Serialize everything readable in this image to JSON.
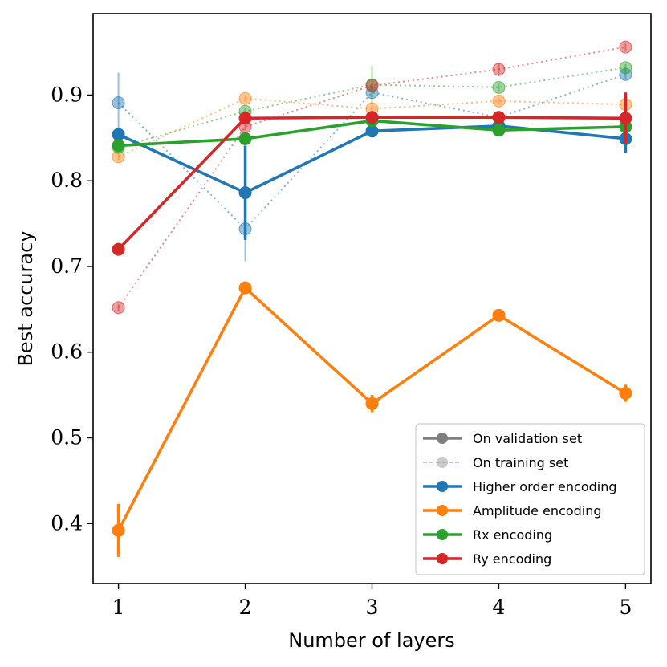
{
  "chart_data": {
    "type": "line",
    "xlabel": "Number of layers",
    "ylabel": "Best accuracy",
    "x": [
      1,
      2,
      3,
      4,
      5
    ],
    "xlim": [
      0.8,
      5.2
    ],
    "ylim": [
      0.33,
      0.995
    ],
    "x_ticks": [
      "1",
      "2",
      "3",
      "4",
      "5"
    ],
    "y_ticks": [
      {
        "value": 0.4,
        "label": "0.4"
      },
      {
        "value": 0.5,
        "label": "0.5"
      },
      {
        "value": 0.6,
        "label": "0.6"
      },
      {
        "value": 0.7,
        "label": "0.7"
      },
      {
        "value": 0.8,
        "label": "0.8"
      },
      {
        "value": 0.9,
        "label": "0.9"
      }
    ],
    "legend_position": "lower-right",
    "legend": [
      {
        "label": "On validation set",
        "color": "#7f7f7f",
        "style": "solid"
      },
      {
        "label": "On training set",
        "color": "#9e9e9e",
        "style": "dashed"
      },
      {
        "label": "Higher order encoding",
        "color": "#1f77b4",
        "style": "solid"
      },
      {
        "label": "Amplitude encoding",
        "color": "#ff7f0e",
        "style": "solid"
      },
      {
        "label": "Rx encoding",
        "color": "#2ca02c",
        "style": "solid"
      },
      {
        "label": "Ry encoding",
        "color": "#d62728",
        "style": "solid"
      }
    ],
    "series": [
      {
        "name": "Higher order encoding",
        "set": "training",
        "color": "#1f77b4",
        "values": [
          0.891,
          0.744,
          0.903,
          0.874,
          0.924
        ],
        "errors": [
          0.035,
          0.038,
          0.006,
          0.004,
          0.006
        ]
      },
      {
        "name": "Amplitude encoding",
        "set": "training",
        "color": "#ff7f0e",
        "values": [
          0.828,
          0.896,
          0.884,
          0.893,
          0.889
        ],
        "errors": [
          0.004,
          0.004,
          0.004,
          0.004,
          0.004
        ]
      },
      {
        "name": "Rx encoding",
        "set": "training",
        "color": "#2ca02c",
        "values": [
          0.839,
          0.881,
          0.912,
          0.909,
          0.932
        ],
        "errors": [
          0.004,
          0.004,
          0.022,
          0.004,
          0.004
        ]
      },
      {
        "name": "Ry encoding",
        "set": "training",
        "color": "#d62728",
        "values": [
          0.652,
          0.863,
          0.911,
          0.93,
          0.956
        ],
        "errors": [
          0.004,
          0.004,
          0.004,
          0.008,
          0.004
        ]
      },
      {
        "name": "Higher order encoding",
        "set": "validation",
        "color": "#1f77b4",
        "values": [
          0.854,
          0.786,
          0.858,
          0.864,
          0.849
        ],
        "errors": [
          0.008,
          0.055,
          0.006,
          0.004,
          0.016
        ]
      },
      {
        "name": "Amplitude encoding",
        "set": "validation",
        "color": "#ff7f0e",
        "values": [
          0.392,
          0.675,
          0.54,
          0.643,
          0.552
        ],
        "errors": [
          0.031,
          0.004,
          0.01,
          0.004,
          0.01
        ]
      },
      {
        "name": "Rx encoding",
        "set": "validation",
        "color": "#2ca02c",
        "values": [
          0.841,
          0.849,
          0.87,
          0.859,
          0.863
        ],
        "errors": [
          0.004,
          0.004,
          0.004,
          0.004,
          0.004
        ]
      },
      {
        "name": "Ry encoding",
        "set": "validation",
        "color": "#d62728",
        "values": [
          0.72,
          0.873,
          0.874,
          0.874,
          0.873
        ],
        "errors": [
          0.004,
          0.004,
          0.004,
          0.004,
          0.03
        ]
      }
    ]
  }
}
